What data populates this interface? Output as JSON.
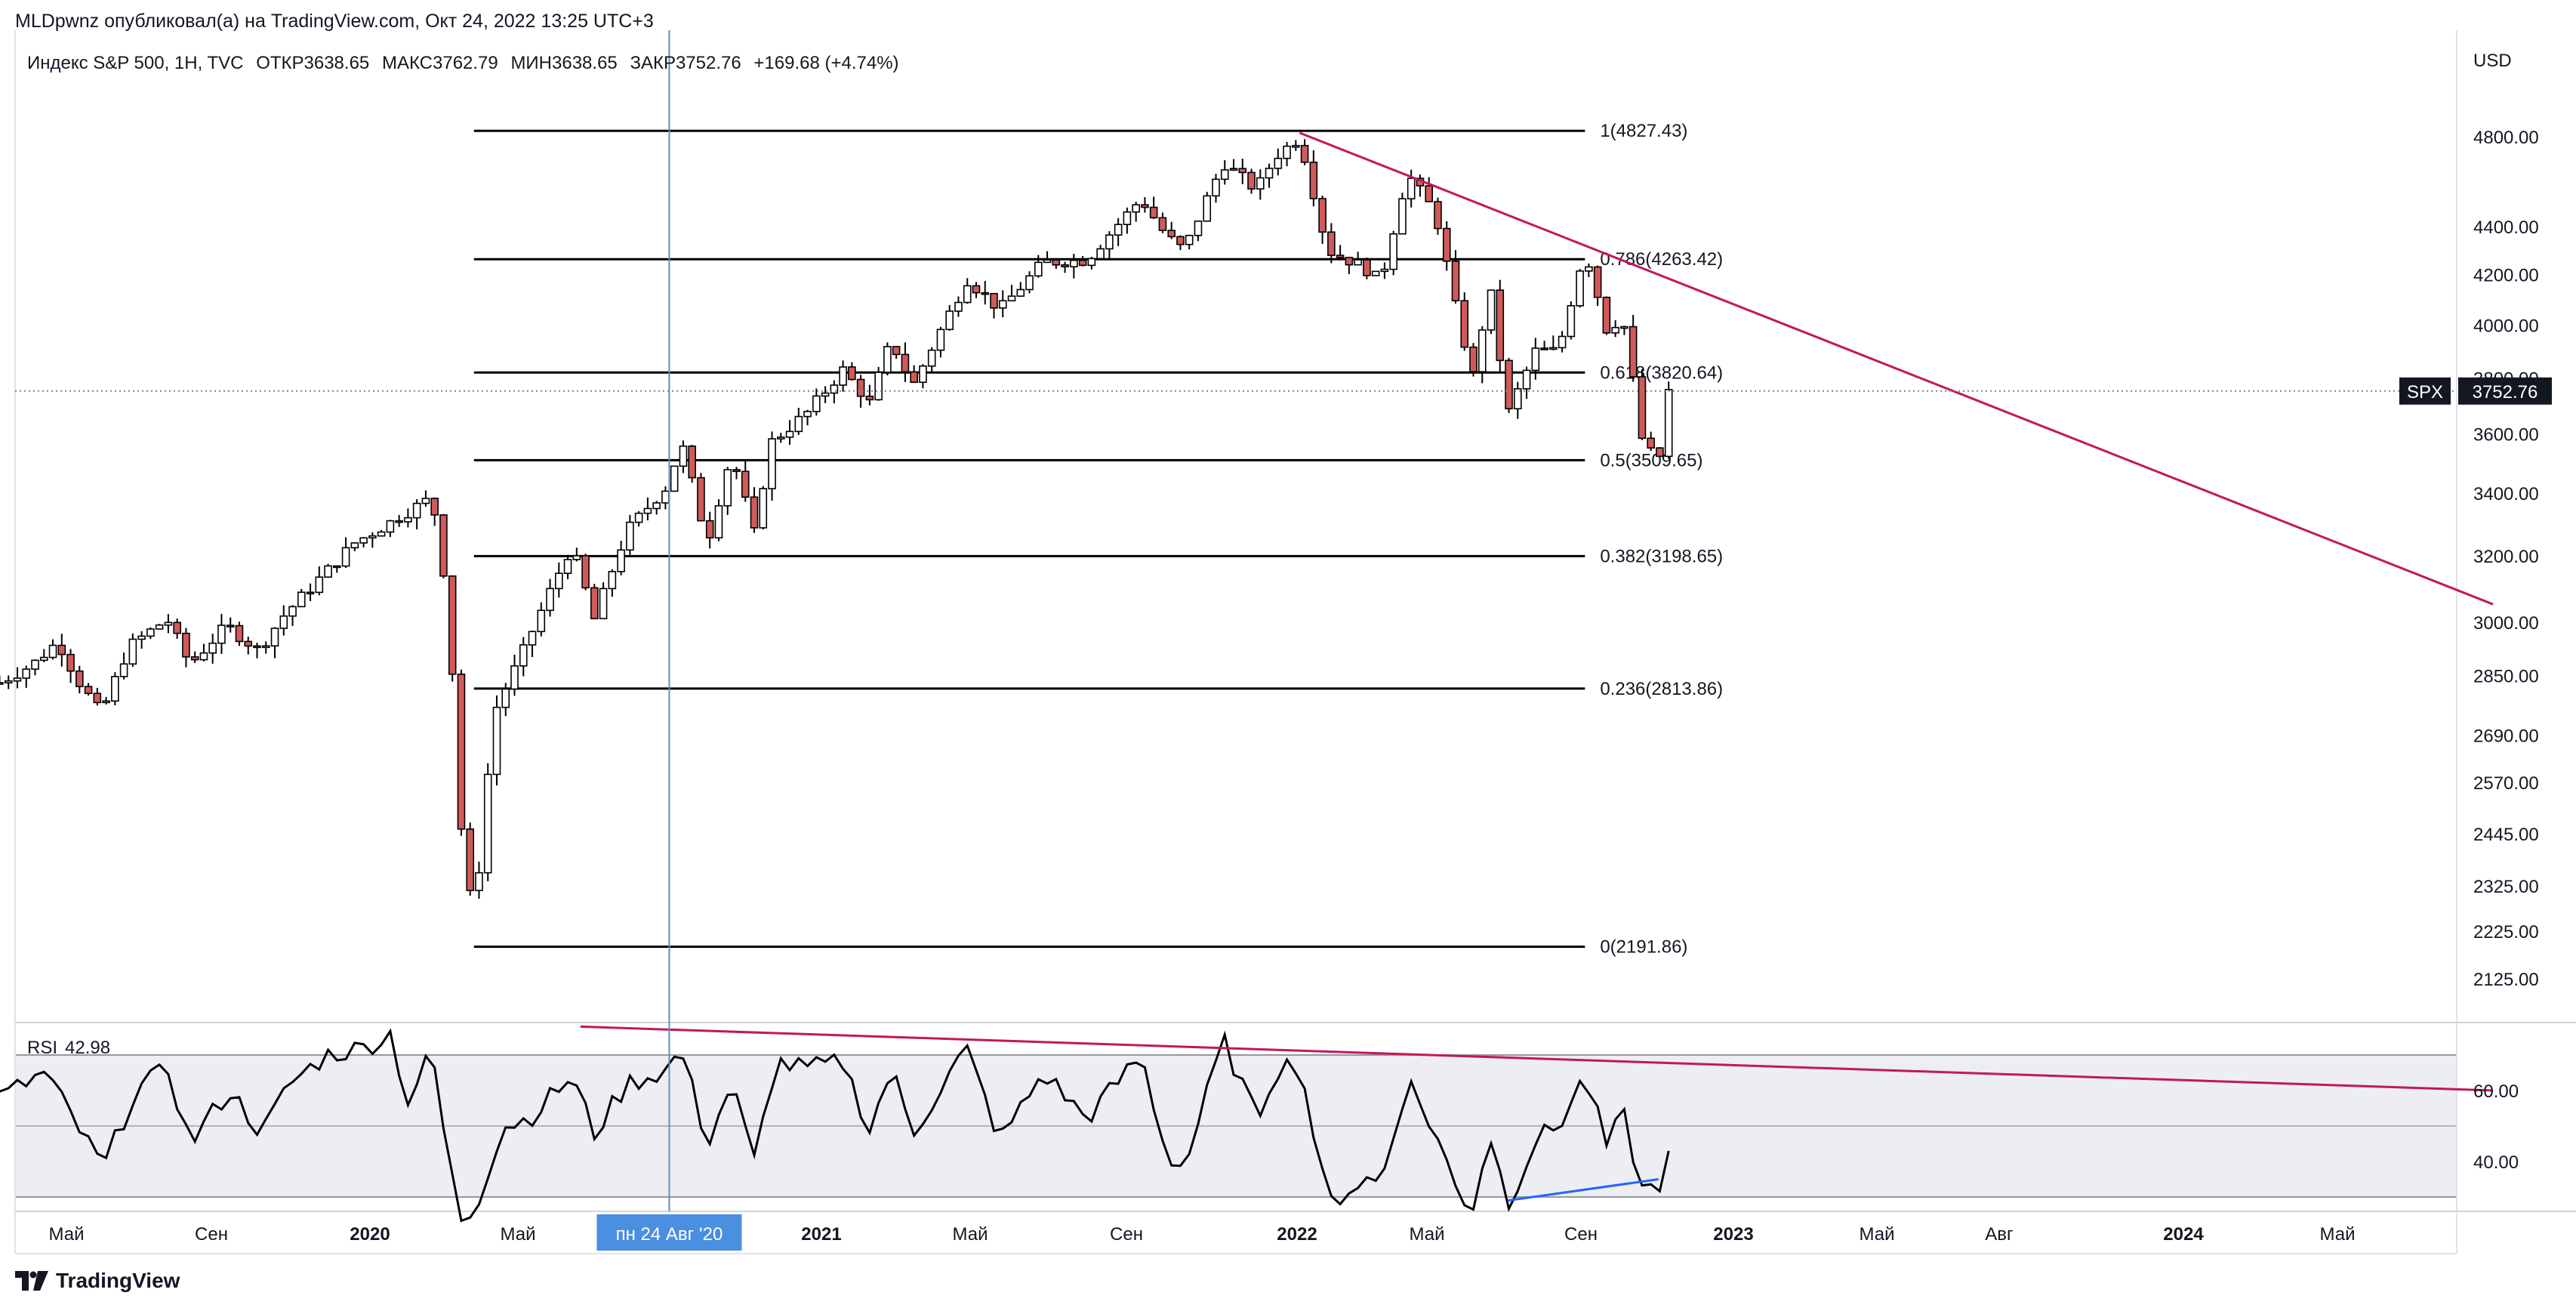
{
  "header": {
    "publish": "MLDpwnz опубликовал(а) на TradingView.com, Окт 24, 2022 13:25 UTC+3",
    "instrument": "Индекс S&P 500, 1H, TVC",
    "open_label": "ОТКР",
    "open": "3638.65",
    "high_label": "МАКС",
    "high": "3762.79",
    "low_label": "МИН",
    "low": "3638.65",
    "close_label": "ЗАКР",
    "close": "3752.76",
    "change": "+169.68 (+4.74%)"
  },
  "price_axis": {
    "currency": "USD",
    "ticks": [
      "4800.00",
      "4400.00",
      "4200.00",
      "4000.00",
      "3800.00",
      "3600.00",
      "3400.00",
      "3200.00",
      "3000.00",
      "2850.00",
      "2690.00",
      "2570.00",
      "2445.00",
      "2325.00",
      "2225.00",
      "2125.00"
    ],
    "last_symbol": "SPX",
    "last_price": "3752.76"
  },
  "time_axis": {
    "ticks": [
      "Май",
      "Сен",
      "2020",
      "Май",
      "2021",
      "Май",
      "Сен",
      "2022",
      "Май",
      "Сен",
      "2023",
      "Май",
      "Авг",
      "2024",
      "Май"
    ],
    "crosshair_label": "пн 24 Авг '20"
  },
  "rsi": {
    "label": "RSI",
    "value": "42.98",
    "ticks": [
      "60.00",
      "40.00"
    ]
  },
  "colors": {
    "up": "#ffffff",
    "down": "#d05a5a",
    "wick": "#000000",
    "trendline": "#c2185b",
    "divergence": "#2962ff",
    "crosshair": "#5b8fc7",
    "rsi_band": "#eceef2"
  },
  "chart_data": [
    {
      "type": "candlestick",
      "title": "Индекс S&P 500, 1H, TVC",
      "scale": "log",
      "ylim": [
        2080,
        4960
      ],
      "x_range": [
        "2019-03",
        "2024-08"
      ],
      "ohlc": [],
      "price_path": [
        [
          "2019-03-15",
          2830
        ],
        [
          "2019-04-10",
          2880
        ],
        [
          "2019-04-30",
          2945
        ],
        [
          "2019-05-15",
          2840
        ],
        [
          "2019-06-03",
          2745
        ],
        [
          "2019-06-25",
          2930
        ],
        [
          "2019-07-25",
          3010
        ],
        [
          "2019-08-12",
          2880
        ],
        [
          "2019-09-10",
          2990
        ],
        [
          "2019-10-05",
          2920
        ],
        [
          "2019-10-25",
          3020
        ],
        [
          "2019-11-25",
          3140
        ],
        [
          "2019-12-20",
          3240
        ],
        [
          "2020-01-15",
          3300
        ],
        [
          "2020-02-19",
          3386
        ],
        [
          "2020-03-03",
          3050
        ],
        [
          "2020-03-12",
          2480
        ],
        [
          "2020-03-23",
          2237
        ],
        [
          "2020-04-08",
          2750
        ],
        [
          "2020-04-30",
          2910
        ],
        [
          "2020-06-08",
          3230
        ],
        [
          "2020-06-26",
          3010
        ],
        [
          "2020-07-22",
          3280
        ],
        [
          "2020-08-24",
          3430
        ],
        [
          "2020-09-02",
          3580
        ],
        [
          "2020-09-23",
          3240
        ],
        [
          "2020-10-12",
          3530
        ],
        [
          "2020-10-30",
          3270
        ],
        [
          "2020-11-12",
          3570
        ],
        [
          "2020-12-10",
          3670
        ],
        [
          "2021-01-08",
          3830
        ],
        [
          "2021-01-29",
          3710
        ],
        [
          "2021-02-15",
          3940
        ],
        [
          "2021-03-04",
          3770
        ],
        [
          "2021-04-16",
          4180
        ],
        [
          "2021-05-12",
          4060
        ],
        [
          "2021-06-15",
          4250
        ],
        [
          "2021-07-19",
          4260
        ],
        [
          "2021-08-31",
          4520
        ],
        [
          "2021-09-20",
          4360
        ],
        [
          "2021-10-04",
          4300
        ],
        [
          "2021-11-04",
          4680
        ],
        [
          "2021-11-30",
          4560
        ],
        [
          "2021-12-15",
          4710
        ],
        [
          "2022-01-03",
          4796
        ],
        [
          "2022-01-25",
          4300
        ],
        [
          "2022-02-23",
          4230
        ],
        [
          "2022-03-08",
          4170
        ],
        [
          "2022-03-29",
          4630
        ],
        [
          "2022-04-20",
          4460
        ],
        [
          "2022-05-09",
          4000
        ],
        [
          "2022-05-20",
          3810
        ],
        [
          "2022-06-02",
          4150
        ],
        [
          "2022-06-16",
          3667
        ],
        [
          "2022-07-08",
          3900
        ],
        [
          "2022-07-26",
          3900
        ],
        [
          "2022-08-16",
          4305
        ],
        [
          "2022-09-06",
          3910
        ],
        [
          "2022-09-12",
          4110
        ],
        [
          "2022-09-30",
          3585
        ],
        [
          "2022-10-13",
          3491
        ],
        [
          "2022-10-21",
          3752
        ]
      ]
    },
    {
      "type": "line",
      "series": [
        {
          "name": "RSI",
          "values": []
        }
      ],
      "ylim": [
        32,
        78
      ],
      "rsi_path": [
        [
          "2019-03-15",
          58
        ],
        [
          "2019-04-20",
          65
        ],
        [
          "2019-05-15",
          50
        ],
        [
          "2019-06-05",
          38
        ],
        [
          "2019-06-30",
          60
        ],
        [
          "2019-07-26",
          66
        ],
        [
          "2019-08-12",
          45
        ],
        [
          "2019-09-12",
          60
        ],
        [
          "2019-10-08",
          48
        ],
        [
          "2019-10-30",
          62
        ],
        [
          "2019-11-28",
          70
        ],
        [
          "2019-12-27",
          72
        ],
        [
          "2020-01-17",
          76
        ],
        [
          "2020-01-31",
          57
        ],
        [
          "2020-02-19",
          71
        ],
        [
          "2020-03-02",
          42
        ],
        [
          "2020-03-12",
          24
        ],
        [
          "2020-03-23",
          26
        ],
        [
          "2020-04-15",
          50
        ],
        [
          "2020-05-05",
          52
        ],
        [
          "2020-06-08",
          64
        ],
        [
          "2020-06-26",
          48
        ],
        [
          "2020-07-22",
          62
        ],
        [
          "2020-08-24",
          66
        ],
        [
          "2020-09-02",
          72
        ],
        [
          "2020-09-23",
          45
        ],
        [
          "2020-10-12",
          62
        ],
        [
          "2020-10-30",
          40
        ],
        [
          "2020-11-16",
          68
        ],
        [
          "2020-12-10",
          66
        ],
        [
          "2021-01-08",
          68
        ],
        [
          "2021-01-29",
          49
        ],
        [
          "2021-02-15",
          66
        ],
        [
          "2021-03-04",
          48
        ],
        [
          "2021-04-15",
          72
        ],
        [
          "2021-05-12",
          46
        ],
        [
          "2021-06-15",
          65
        ],
        [
          "2021-07-19",
          52
        ],
        [
          "2021-08-31",
          70
        ],
        [
          "2021-09-20",
          42
        ],
        [
          "2021-10-04",
          38
        ],
        [
          "2021-11-04",
          74
        ],
        [
          "2021-11-30",
          52
        ],
        [
          "2021-12-15",
          66
        ],
        [
          "2022-01-03",
          68
        ],
        [
          "2022-01-25",
          28
        ],
        [
          "2022-02-23",
          35
        ],
        [
          "2022-03-08",
          34
        ],
        [
          "2022-03-29",
          63
        ],
        [
          "2022-04-20",
          48
        ],
        [
          "2022-05-09",
          30
        ],
        [
          "2022-05-20",
          28
        ],
        [
          "2022-06-02",
          48
        ],
        [
          "2022-06-16",
          28
        ],
        [
          "2022-07-08",
          46
        ],
        [
          "2022-07-26",
          50
        ],
        [
          "2022-08-16",
          64
        ],
        [
          "2022-09-06",
          40
        ],
        [
          "2022-09-12",
          58
        ],
        [
          "2022-09-30",
          32
        ],
        [
          "2022-10-13",
          33
        ],
        [
          "2022-10-21",
          42.98
        ]
      ]
    }
  ],
  "fib_levels": [
    {
      "label": "1(4827.43)",
      "price": 4827.43
    },
    {
      "label": "0.786(4263.42)",
      "price": 4263.42
    },
    {
      "label": "0.618(3820.64)",
      "price": 3820.64
    },
    {
      "label": "0.5(3509.65)",
      "price": 3509.65
    },
    {
      "label": "0.382(3198.65)",
      "price": 3198.65
    },
    {
      "label": "0.236(2813.86)",
      "price": 2813.86
    },
    {
      "label": "0(2191.86)",
      "price": 2191.86
    }
  ],
  "fib_range": [
    "2020-03-23",
    "2022-08-16"
  ],
  "trendline_price": {
    "from": [
      "2022-01-03",
      4818
    ],
    "to": [
      "2024-08-01",
      3053
    ]
  },
  "trendline_rsi": {
    "from": [
      "2020-06-15",
      78
    ],
    "to": [
      "2024-08-01",
      60
    ]
  },
  "divergence_rsi": {
    "from": [
      "2022-06-16",
      29
    ],
    "to": [
      "2022-10-13",
      35
    ]
  },
  "crosshair_date": "2020-08-24",
  "footer": {
    "brand": "TradingView"
  }
}
